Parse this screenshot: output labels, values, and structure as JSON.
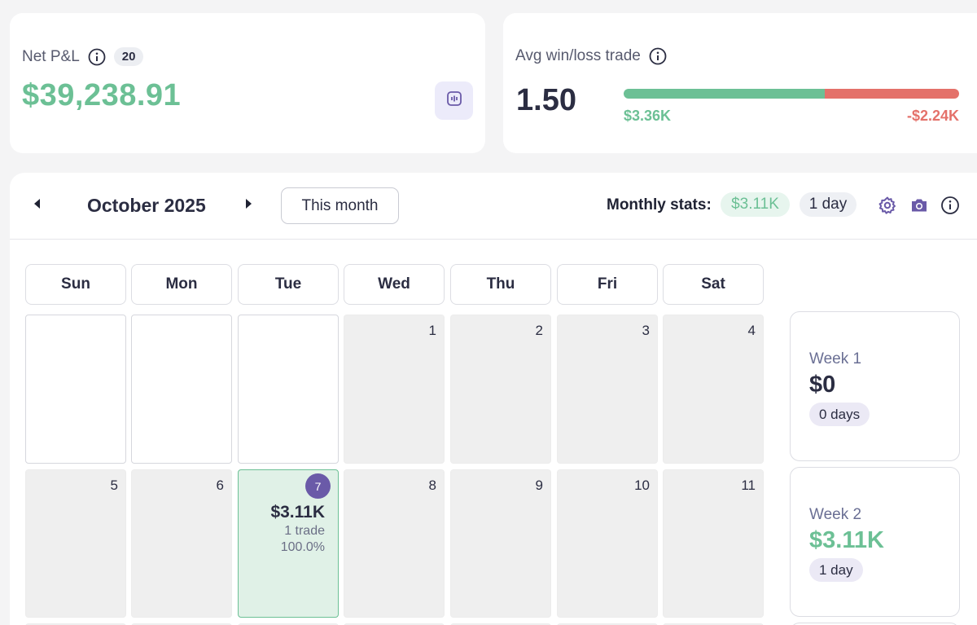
{
  "net_pnl": {
    "label": "Net P&L",
    "count_badge": "20",
    "value": "$39,238.91",
    "value_color": "#6cc095",
    "info_icon": "info-icon",
    "toggle_icon": "chart-toggle-icon"
  },
  "avg_win_loss": {
    "label": "Avg win/loss trade",
    "ratio": "1.50",
    "avg_win": "$3.36K",
    "avg_loss": "-$2.24K",
    "win_fraction": 0.6,
    "win_color": "#6cc095",
    "loss_color": "#e4716a"
  },
  "calendar": {
    "month_title": "October 2025",
    "this_month_label": "This month",
    "monthly_stats_label": "Monthly stats:",
    "monthly_amount": "$3.11K",
    "monthly_days": "1 day",
    "icons": [
      "prev-arrow-icon",
      "next-arrow-icon",
      "gear-icon",
      "camera-icon",
      "info-icon"
    ],
    "weekdays": [
      "Sun",
      "Mon",
      "Tue",
      "Wed",
      "Thu",
      "Fri",
      "Sat"
    ],
    "weeks": [
      {
        "days": [
          {
            "num": "",
            "state": "empty"
          },
          {
            "num": "",
            "state": "empty"
          },
          {
            "num": "",
            "state": "empty"
          },
          {
            "num": "1",
            "state": "normal"
          },
          {
            "num": "2",
            "state": "normal"
          },
          {
            "num": "3",
            "state": "normal"
          },
          {
            "num": "4",
            "state": "normal"
          }
        ],
        "summary": {
          "label": "Week 1",
          "value": "$0",
          "days": "0 days",
          "value_color": "#2b2d42"
        }
      },
      {
        "days": [
          {
            "num": "5",
            "state": "normal"
          },
          {
            "num": "6",
            "state": "normal"
          },
          {
            "num": "7",
            "state": "active",
            "pnl": "$3.11K",
            "trades": "1 trade",
            "winrate": "100.0%"
          },
          {
            "num": "8",
            "state": "normal"
          },
          {
            "num": "9",
            "state": "normal"
          },
          {
            "num": "10",
            "state": "normal"
          },
          {
            "num": "11",
            "state": "normal"
          }
        ],
        "summary": {
          "label": "Week 2",
          "value": "$3.11K",
          "days": "1 day",
          "value_color": "#6cc095"
        }
      }
    ]
  }
}
